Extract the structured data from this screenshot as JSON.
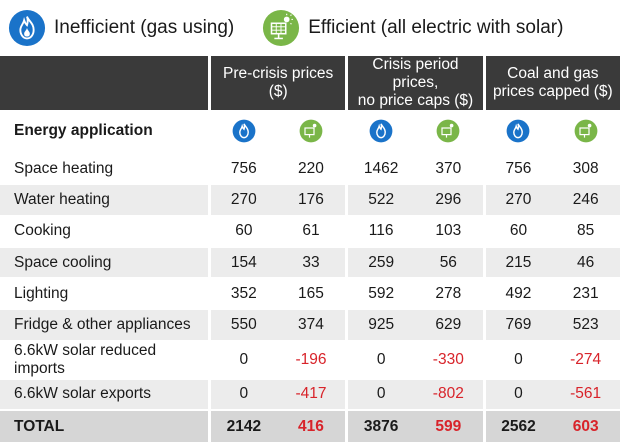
{
  "legend": {
    "gas_label": "Inefficient (gas using)",
    "electric_label": "Efficient (all electric with solar)",
    "gas_icon": "flame-icon",
    "electric_icon": "solar-panel-icon",
    "gas_color": "#1a73c9",
    "electric_color": "#7ab648"
  },
  "chart_data": {
    "type": "table",
    "row_header_label": "Energy application",
    "column_groups": [
      {
        "label": "Pre-crisis prices ($)",
        "line1": "Pre-crisis prices",
        "line2": "($)"
      },
      {
        "label": "Crisis period prices, no price caps ($)",
        "line1": "Crisis period prices,",
        "line2": "no price caps ($)"
      },
      {
        "label": "Coal and gas prices capped ($)",
        "line1": "Coal and gas",
        "line2": "prices capped ($)"
      }
    ],
    "sub_columns": [
      "Inefficient (gas using)",
      "Efficient (all electric with solar)"
    ],
    "rows": [
      {
        "label": "Space heating",
        "values": [
          756,
          220,
          1462,
          370,
          756,
          308
        ]
      },
      {
        "label": "Water heating",
        "values": [
          270,
          176,
          522,
          296,
          270,
          246
        ]
      },
      {
        "label": "Cooking",
        "values": [
          60,
          61,
          116,
          103,
          60,
          85
        ]
      },
      {
        "label": "Space cooling",
        "values": [
          154,
          33,
          259,
          56,
          215,
          46
        ]
      },
      {
        "label": "Lighting",
        "values": [
          352,
          165,
          592,
          278,
          492,
          231
        ]
      },
      {
        "label": "Fridge & other appliances",
        "values": [
          550,
          374,
          925,
          629,
          769,
          523
        ]
      },
      {
        "label": "6.6kW solar reduced imports",
        "values": [
          0,
          -196,
          0,
          -330,
          0,
          -274
        ]
      },
      {
        "label": "6.6kW solar exports",
        "values": [
          0,
          -417,
          0,
          -802,
          0,
          -561
        ]
      }
    ],
    "total": {
      "label": "TOTAL",
      "values": [
        2142,
        416,
        3876,
        599,
        2562,
        603
      ]
    },
    "negative_color": "#d8232a"
  }
}
